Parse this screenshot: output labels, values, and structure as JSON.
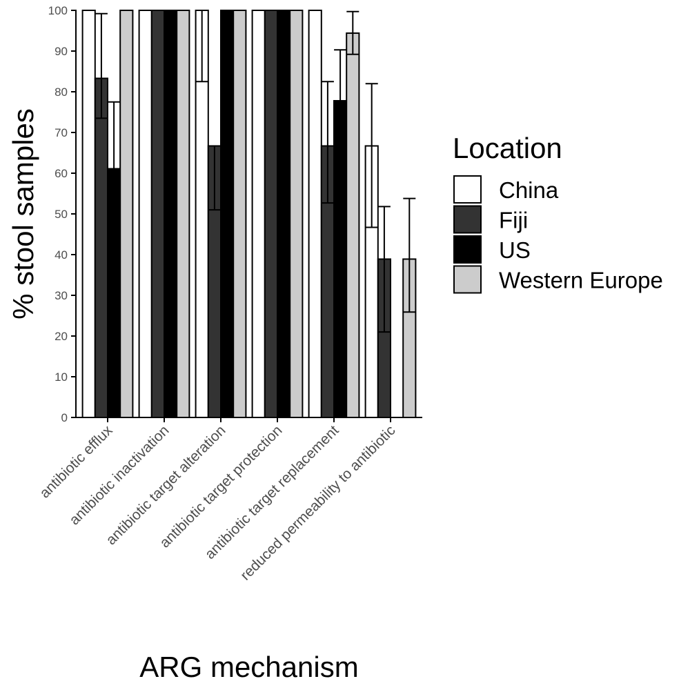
{
  "chart_data": {
    "type": "bar",
    "xlabel": "ARG mechanism",
    "ylabel": "% stool samples",
    "ylim": [
      0,
      100
    ],
    "yticks": [
      0,
      10,
      20,
      30,
      40,
      50,
      60,
      70,
      80,
      90,
      100
    ],
    "grid": false,
    "legend": {
      "title": "Location",
      "placement": "right"
    },
    "categories": [
      "antibiotic efflux",
      "antibiotic inactivation",
      "antibiotic target alteration",
      "antibiotic target protection",
      "antibiotic target replacement",
      "reduced permeability to antibiotic"
    ],
    "series": [
      {
        "name": "China",
        "color": "#ffffff",
        "values": [
          100,
          100,
          100,
          100,
          100,
          66.7
        ],
        "error_low": [
          null,
          null,
          82.5,
          null,
          null,
          46.7
        ],
        "error_high": [
          null,
          null,
          null,
          null,
          null,
          82
        ]
      },
      {
        "name": "Fiji",
        "color": "#333333",
        "values": [
          83.3,
          100,
          66.7,
          100,
          66.7,
          38.9
        ],
        "error_low": [
          73.5,
          null,
          51,
          null,
          52.7,
          21
        ],
        "error_high": [
          99.2,
          null,
          null,
          null,
          82.5,
          51.8
        ]
      },
      {
        "name": "US",
        "color": "#000000",
        "values": [
          61.1,
          100,
          100,
          100,
          77.8,
          0
        ],
        "error_low": [
          null,
          null,
          null,
          null,
          null,
          null
        ],
        "error_high": [
          77.5,
          null,
          null,
          null,
          90.3,
          null
        ]
      },
      {
        "name": "Western Europe",
        "color": "#cccccc",
        "values": [
          100,
          100,
          100,
          100,
          94.4,
          38.9
        ],
        "error_low": [
          null,
          null,
          null,
          null,
          89.2,
          25.9
        ],
        "error_high": [
          null,
          null,
          null,
          null,
          99.7,
          53.8
        ]
      }
    ]
  }
}
